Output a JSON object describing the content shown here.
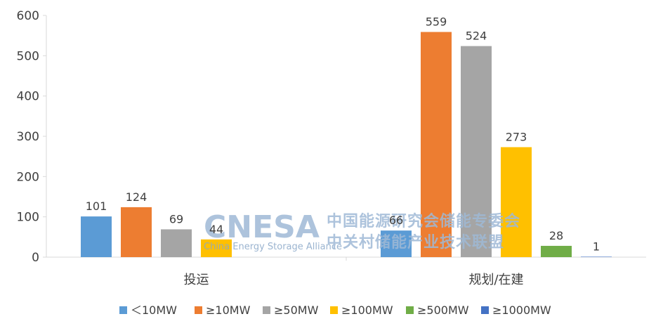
{
  "chart_data": {
    "type": "bar",
    "categories": [
      "投运",
      "规划/在建"
    ],
    "series": [
      {
        "name": "＜10MW",
        "color": "#5b9bd5",
        "values": [
          101,
          66
        ]
      },
      {
        "name": "≥10MW",
        "color": "#ed7d31",
        "values": [
          124,
          559
        ]
      },
      {
        "name": "≥50MW",
        "color": "#a5a5a5",
        "values": [
          69,
          524
        ]
      },
      {
        "name": "≥100MW",
        "color": "#ffc000",
        "values": [
          44,
          273
        ]
      },
      {
        "name": "≥500MW",
        "color": "#70ad47",
        "values": [
          null,
          28
        ]
      },
      {
        "name": "≥1000MW",
        "color": "#4472c4",
        "values": [
          null,
          1
        ]
      }
    ],
    "yticks": [
      0,
      100,
      200,
      300,
      400,
      500,
      600
    ],
    "ylim": [
      0,
      600
    ],
    "grid": false,
    "legend_position": "bottom",
    "title": "",
    "xlabel": "",
    "ylabel": ""
  },
  "watermark": {
    "brand": "CNESA",
    "english": "China Energy Storage Alliance",
    "chinese_line1": "中国能源研究会储能专委会",
    "chinese_line2": "中关村储能产业技术联盟"
  }
}
